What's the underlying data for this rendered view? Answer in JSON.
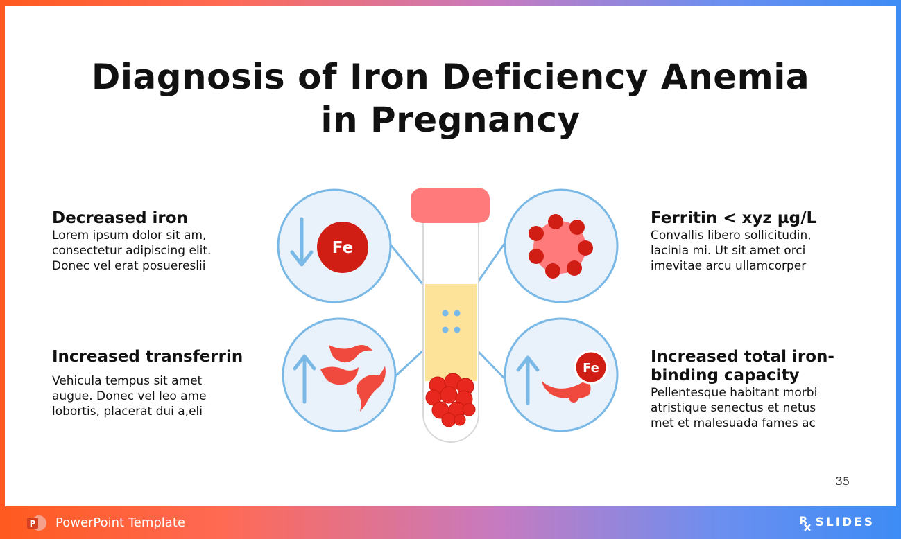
{
  "slide": {
    "title_line1": "Diagnosis of Iron Deficiency Anemia",
    "title_line2": "in Pregnancy",
    "page_number": "35"
  },
  "items": [
    {
      "heading": "Decreased iron",
      "body": [
        "Lorem ipsum dolor sit am,",
        "consectetur adipiscing elit.",
        "Donec vel erat posuereslii"
      ]
    },
    {
      "heading": "Increased transferrin",
      "body": [
        "Vehicula tempus sit amet",
        "augue. Donec vel leo ame",
        "lobortis, placerat dui a,eli"
      ]
    },
    {
      "heading": "Ferritin < xyz µg/L",
      "body": [
        "Convallis libero sollicitudin,",
        "lacinia mi. Ut sit amet orci",
        "imevitae arcu ullamcorper"
      ]
    },
    {
      "heading_line1": "Increased total iron-",
      "heading_line2": "binding capacity",
      "body": [
        "Pellentesque habitant morbi",
        "atristique senectus et netus",
        "met et malesuada fames ac"
      ]
    }
  ],
  "icons": {
    "fe_label": "Fe",
    "circle_icons": [
      "decreased-iron-icon",
      "ferritin-icon",
      "transferrin-icon",
      "iron-binding-icon"
    ],
    "center_icon": "blood-test-tube-icon"
  },
  "footer": {
    "label": "PowerPoint Template",
    "brand": "SLIDES",
    "brand_prefix": "R"
  },
  "colors": {
    "accent_red": "#e8281e",
    "circle_stroke": "#7ab8e6",
    "circle_fill": "#e9f2fb",
    "arrow_blue": "#7ab8e6",
    "tube_cap": "#ff7b7b",
    "plasma": "#fde29a"
  }
}
